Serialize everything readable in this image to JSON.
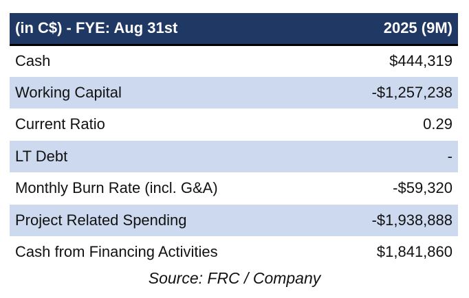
{
  "table": {
    "header": {
      "label": "(in C$) - FYE: Aug 31st",
      "value": "2025 (9M)"
    },
    "rows": [
      {
        "label": "Cash",
        "value": "$444,319",
        "shaded": false
      },
      {
        "label": "Working Capital",
        "value": "-$1,257,238",
        "shaded": true
      },
      {
        "label": "Current Ratio",
        "value": "0.29",
        "shaded": false
      },
      {
        "label": "LT Debt",
        "value": "-",
        "shaded": true
      },
      {
        "label": "Monthly Burn Rate (incl. G&A)",
        "value": "-$59,320",
        "shaded": false
      },
      {
        "label": "Project Related Spending",
        "value": "-$1,938,888",
        "shaded": true
      },
      {
        "label": "Cash from Financing Activities",
        "value": "$1,841,860",
        "shaded": false
      }
    ]
  },
  "source": "Source: FRC / Company",
  "colors": {
    "header_bg": "#1f3864",
    "shaded_row": "#cdd9ee"
  }
}
